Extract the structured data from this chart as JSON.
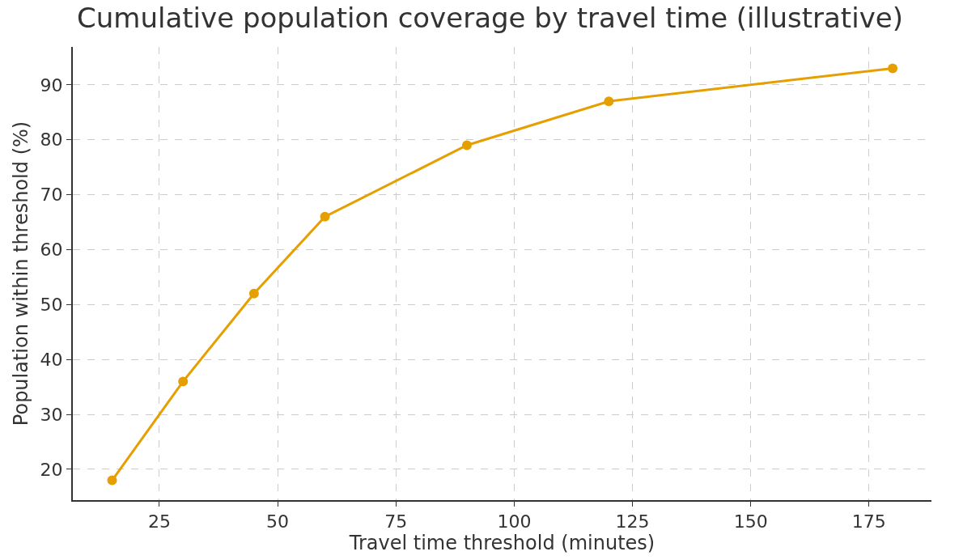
{
  "chart_data": {
    "type": "line",
    "title": "Cumulative population coverage by travel time (illustrative)",
    "xlabel": "Travel time threshold (minutes)",
    "ylabel": "Population within threshold (%)",
    "x": [
      15,
      30,
      45,
      60,
      90,
      120,
      180
    ],
    "series": [
      {
        "color": "#e69f00",
        "values": [
          18,
          36,
          52,
          66,
          79,
          87,
          93
        ]
      }
    ],
    "xlim": [
      6.7,
      188.2
    ],
    "xticks": [
      25,
      50,
      75,
      100,
      125,
      150,
      175
    ],
    "ylim": [
      14.4,
      96.9
    ],
    "yticks": [
      20,
      30,
      40,
      50,
      60,
      70,
      80,
      90
    ],
    "grid": true,
    "marker": "circle",
    "line_style": "solid"
  }
}
